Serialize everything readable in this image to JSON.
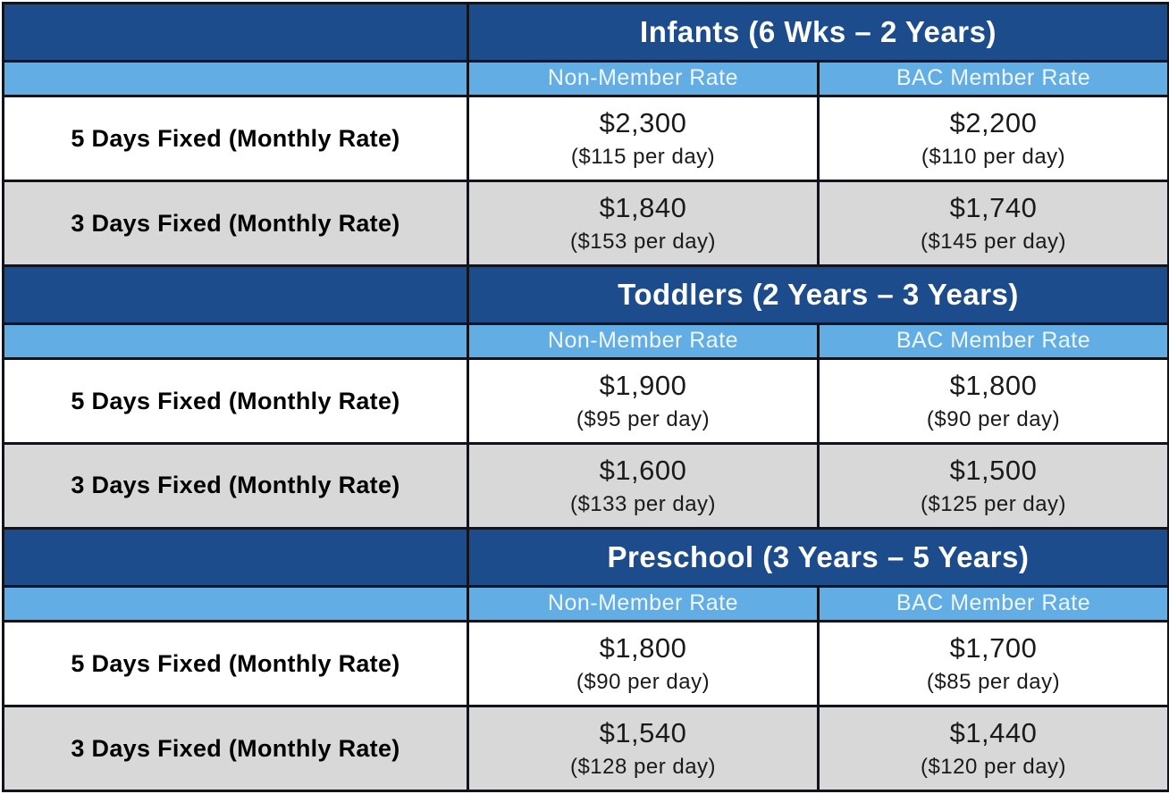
{
  "colors": {
    "section_header_bg": "#1d4c8d",
    "subheader_bg": "#62ade4",
    "alt_row_bg": "#d8d8d8",
    "border": "#11141c",
    "header_text": "#ffffff"
  },
  "column_headers": {
    "non_member": "Non-Member Rate",
    "bac_member": "BAC Member Rate"
  },
  "sections": [
    {
      "title": "Infants (6 Wks – 2 Years)",
      "rows": [
        {
          "label": "5 Days Fixed (Monthly Rate)",
          "non_member": {
            "monthly": "$2,300",
            "per_day": "($115 per day)"
          },
          "bac_member": {
            "monthly": "$2,200",
            "per_day": "($110 per day)"
          }
        },
        {
          "label": "3 Days Fixed (Monthly Rate)",
          "non_member": {
            "monthly": "$1,840",
            "per_day": "($153 per day)"
          },
          "bac_member": {
            "monthly": "$1,740",
            "per_day": "($145 per day)"
          }
        }
      ]
    },
    {
      "title": "Toddlers (2 Years – 3 Years)",
      "rows": [
        {
          "label": "5 Days Fixed (Monthly Rate)",
          "non_member": {
            "monthly": "$1,900",
            "per_day": "($95 per day)"
          },
          "bac_member": {
            "monthly": "$1,800",
            "per_day": "($90 per day)"
          }
        },
        {
          "label": "3 Days Fixed (Monthly Rate)",
          "non_member": {
            "monthly": "$1,600",
            "per_day": "($133 per day)"
          },
          "bac_member": {
            "monthly": "$1,500",
            "per_day": "($125 per day)"
          }
        }
      ]
    },
    {
      "title": "Preschool (3 Years – 5 Years)",
      "rows": [
        {
          "label": "5 Days Fixed (Monthly Rate)",
          "non_member": {
            "monthly": "$1,800",
            "per_day": "($90 per day)"
          },
          "bac_member": {
            "monthly": "$1,700",
            "per_day": "($85 per day)"
          }
        },
        {
          "label": "3 Days Fixed (Monthly Rate)",
          "non_member": {
            "monthly": "$1,540",
            "per_day": "($128 per day)"
          },
          "bac_member": {
            "monthly": "$1,440",
            "per_day": "($120 per day)"
          }
        }
      ]
    }
  ]
}
